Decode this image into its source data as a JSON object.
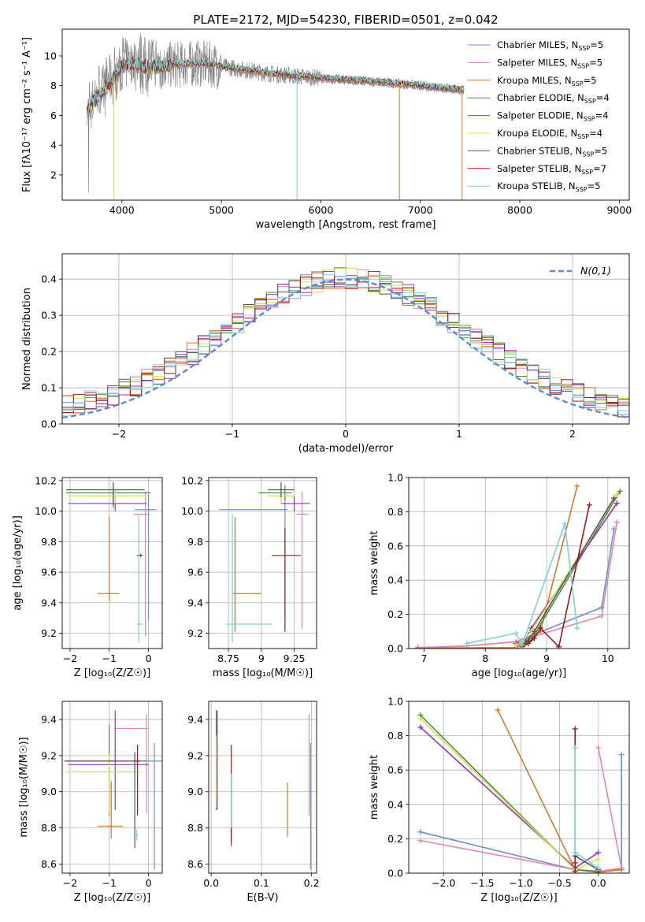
{
  "figure_title": "PLATE=2172, MJD=54230, FIBERID=0501, z=0.042",
  "colors": {
    "chabrier_miles": "#6d8fd6",
    "salpeter_miles": "#e385ba",
    "kroupa_miles": "#d6782a",
    "chabrier_elodie": "#4c8c48",
    "salpeter_elodie": "#9a2fb8",
    "kroupa_elodie": "#cfe64a",
    "chabrier_stelib": "#555555",
    "salpeter_stelib": "#a01818",
    "kroupa_stelib": "#7bd3d6",
    "data_spectrum": "#7f7f7f",
    "normal_curve": "#5b8bd6"
  },
  "legend_entries": [
    {
      "label": "Chabrier MILES, N",
      "sub": "SSP",
      "suffix": "=5"
    },
    {
      "label": "Salpeter MILES, N",
      "sub": "SSP",
      "suffix": "=5"
    },
    {
      "label": "Kroupa MILES, N",
      "sub": "SSP",
      "suffix": "=5"
    },
    {
      "label": "Chabrier ELODIE, N",
      "sub": "SSP",
      "suffix": "=4"
    },
    {
      "label": "Salpeter ELODIE, N",
      "sub": "SSP",
      "suffix": "=4"
    },
    {
      "label": "Kroupa ELODIE, N",
      "sub": "SSP",
      "suffix": "=4"
    },
    {
      "label": "Chabrier STELIB, N",
      "sub": "SSP",
      "suffix": "=5"
    },
    {
      "label": "Salpeter STELIB, N",
      "sub": "SSP",
      "suffix": "=7"
    },
    {
      "label": "Kroupa STELIB, N",
      "sub": "SSP",
      "suffix": "=5"
    }
  ],
  "chart_data": [
    {
      "id": "spectrum",
      "type": "line",
      "xlabel": "wavelength [Angstrom, rest frame]",
      "ylabel": "Flux [fλ10⁻¹⁷ erg cm⁻² s⁻¹ A⁻¹]",
      "xlim": [
        3400,
        9100
      ],
      "ylim": [
        0.3,
        11.8
      ],
      "xticks": [
        4000,
        5000,
        6000,
        7000,
        8000,
        9000
      ],
      "yticks": [
        2,
        4,
        6,
        8,
        10
      ],
      "data_envelope": {
        "x": [
          3650,
          3800,
          4000,
          4200,
          4500,
          5000,
          5500,
          6000,
          6500,
          7000,
          7400
        ],
        "y": [
          6.5,
          7.8,
          9.5,
          10.0,
          9.8,
          9.6,
          9.0,
          8.6,
          8.4,
          8.1,
          7.8
        ]
      },
      "model_continuum": {
        "x": [
          3650,
          3700,
          3800,
          3900,
          4000,
          4100,
          4200,
          4300,
          4500,
          4800,
          5000,
          5500,
          6000,
          6500,
          7000,
          7440
        ],
        "y": [
          6.2,
          6.8,
          7.6,
          8.3,
          9.3,
          9.5,
          9.3,
          9.2,
          9.4,
          9.5,
          9.3,
          8.8,
          8.5,
          8.3,
          8.0,
          7.7
        ]
      },
      "dips": [
        {
          "x": 3920,
          "y": 0.3,
          "model": "kroupa_elodie"
        },
        {
          "x": 5760,
          "y": 0.3,
          "model": "kroupa_stelib"
        },
        {
          "x": 6790,
          "y": 0.3,
          "model": "kroupa_miles"
        },
        {
          "x": 7420,
          "y": 0.3,
          "model": "kroupa_miles"
        }
      ]
    },
    {
      "id": "residuals",
      "type": "histogram",
      "xlabel": "(data-model)/error",
      "ylabel": "Normed distribution",
      "xlim": [
        -2.5,
        2.5
      ],
      "ylim": [
        0,
        0.47
      ],
      "xticks": [
        -2,
        -1,
        0,
        1,
        2
      ],
      "yticks": [
        0.0,
        0.1,
        0.2,
        0.3,
        0.4
      ],
      "grid": true,
      "legend": "N(0,1)",
      "legend_position": "top-right",
      "bin_width": 0.1
    },
    {
      "id": "age_vs_Z",
      "type": "scatter-errorbar",
      "xlabel": "Z [log₁₀(Z/Z☉)]",
      "ylabel": "age  [log₁₀(age/yr)]",
      "xlim": [
        -2.2,
        0.35
      ],
      "ylim": [
        9.1,
        10.22
      ],
      "xticks": [
        -2,
        -1,
        0
      ],
      "yticks": [
        9.2,
        9.4,
        9.6,
        9.8,
        10.0,
        10.2
      ],
      "grid": true,
      "points": [
        {
          "model": "chabrier_miles",
          "x": 0.0,
          "y": 10.01,
          "xerr": [
            0.35,
            0.2
          ],
          "yerr": [
            0.72,
            0.1
          ]
        },
        {
          "model": "salpeter_miles",
          "x": -0.08,
          "y": 9.98,
          "xerr": [
            0.3,
            0.1
          ],
          "yerr": [
            0.8,
            0.15
          ]
        },
        {
          "model": "kroupa_miles",
          "x": -1.0,
          "y": 9.46,
          "xerr": [
            0.3,
            0.25
          ],
          "yerr": [
            0.05,
            0.5
          ]
        },
        {
          "model": "chabrier_elodie",
          "x": -0.9,
          "y": 10.12,
          "xerr": [
            1.2,
            0.95
          ],
          "yerr": [
            0.1,
            0.05
          ]
        },
        {
          "model": "salpeter_elodie",
          "x": -0.85,
          "y": 10.05,
          "xerr": [
            1.2,
            0.8
          ],
          "yerr": [
            0.05,
            0.05
          ]
        },
        {
          "model": "kroupa_elodie",
          "x": -0.85,
          "y": 10.1,
          "xerr": [
            1.2,
            0.8
          ],
          "yerr": [
            0.05,
            0.05
          ]
        },
        {
          "model": "chabrier_stelib",
          "x": -0.9,
          "y": 10.14,
          "xerr": [
            1.2,
            0.8
          ],
          "yerr": [
            0.1,
            0.05
          ]
        },
        {
          "model": "salpeter_stelib",
          "x": -0.2,
          "y": 9.71,
          "xerr": [
            0.1,
            0.05
          ],
          "yerr": [
            0.01,
            0.01
          ]
        },
        {
          "model": "kroupa_stelib",
          "x": -0.25,
          "y": 9.26,
          "xerr": [
            0.05,
            0.1
          ],
          "yerr": [
            0.12,
            0.72
          ]
        }
      ]
    },
    {
      "id": "age_vs_mass",
      "type": "scatter-errorbar",
      "xlabel": "mass [log₁₀(M/M☉)]",
      "ylabel": "",
      "xlim": [
        8.6,
        9.42
      ],
      "ylim": [
        9.1,
        10.22
      ],
      "xticks": [
        8.75,
        9.0,
        9.25
      ],
      "yticks": [
        9.2,
        9.4,
        9.6,
        9.8,
        10.0,
        10.2
      ],
      "grid": true,
      "points": [
        {
          "model": "chabrier_miles",
          "x": 9.18,
          "y": 10.01,
          "xerr": [
            0.5,
            0.02
          ],
          "yerr": [
            0.72,
            0.1
          ]
        },
        {
          "model": "salpeter_miles",
          "x": 9.31,
          "y": 9.98,
          "xerr": [
            0.05,
            0.05
          ],
          "yerr": [
            0.75,
            0.15
          ]
        },
        {
          "model": "kroupa_miles",
          "x": 8.8,
          "y": 9.46,
          "xerr": [
            0.02,
            0.2
          ],
          "yerr": [
            0.25,
            0.5
          ]
        },
        {
          "model": "chabrier_elodie",
          "x": 9.18,
          "y": 10.12,
          "xerr": [
            0.2,
            0.05
          ],
          "yerr": [
            0.05,
            0.05
          ]
        },
        {
          "model": "salpeter_elodie",
          "x": 9.25,
          "y": 10.05,
          "xerr": [
            0.1,
            0.12
          ],
          "yerr": [
            0.05,
            0.05
          ]
        },
        {
          "model": "kroupa_elodie",
          "x": 9.15,
          "y": 10.1,
          "xerr": [
            0.1,
            0.1
          ],
          "yerr": [
            0.05,
            0.05
          ]
        },
        {
          "model": "chabrier_stelib",
          "x": 9.15,
          "y": 10.14,
          "xerr": [
            0.1,
            0.1
          ],
          "yerr": [
            0.05,
            0.05
          ]
        },
        {
          "model": "salpeter_stelib",
          "x": 9.18,
          "y": 9.71,
          "xerr": [
            0.1,
            0.12
          ],
          "yerr": [
            0.5,
            0.18
          ]
        },
        {
          "model": "kroupa_stelib",
          "x": 8.78,
          "y": 9.26,
          "xerr": [
            0.05,
            0.3
          ],
          "yerr": [
            0.12,
            0.72
          ]
        }
      ]
    },
    {
      "id": "massweight_vs_age",
      "type": "line",
      "xlabel": "age  [log₁₀(age/yr)]",
      "ylabel": "mass weight",
      "xlim": [
        6.75,
        10.35
      ],
      "ylim": [
        0,
        1.0
      ],
      "xticks": [
        7,
        8,
        9,
        10
      ],
      "yticks": [
        0.0,
        0.2,
        0.4,
        0.6,
        0.8,
        1.0
      ],
      "grid": true,
      "series": [
        {
          "model": "chabrier_miles",
          "x": [
            6.9,
            7.7,
            8.5,
            9.9,
            10.1
          ],
          "y": [
            0.005,
            0.015,
            0.04,
            0.24,
            0.7
          ]
        },
        {
          "model": "salpeter_miles",
          "x": [
            6.9,
            7.7,
            8.5,
            9.9,
            10.15
          ],
          "y": [
            0.005,
            0.015,
            0.04,
            0.19,
            0.74
          ]
        },
        {
          "model": "kroupa_miles",
          "x": [
            6.9,
            8.5,
            8.9,
            9.5
          ],
          "y": [
            0.003,
            0.005,
            0.1,
            0.95
          ]
        },
        {
          "model": "chabrier_elodie",
          "x": [
            8.5,
            8.65,
            8.75,
            10.2
          ],
          "y": [
            0.02,
            0.03,
            0.05,
            0.92
          ]
        },
        {
          "model": "salpeter_elodie",
          "x": [
            8.5,
            8.65,
            8.75,
            10.15
          ],
          "y": [
            0.03,
            0.05,
            0.12,
            0.85
          ]
        },
        {
          "model": "kroupa_elodie",
          "x": [
            8.5,
            8.6,
            8.75,
            10.15
          ],
          "y": [
            0.02,
            0.04,
            0.1,
            0.9
          ]
        },
        {
          "model": "chabrier_stelib",
          "x": [
            8.6,
            8.7,
            8.8,
            10.1
          ],
          "y": [
            0.02,
            0.05,
            0.1,
            0.88
          ]
        },
        {
          "model": "salpeter_stelib",
          "x": [
            8.6,
            8.7,
            8.8,
            8.9,
            9.2,
            9.7
          ],
          "y": [
            0.01,
            0.03,
            0.06,
            0.12,
            0.01,
            0.84
          ]
        },
        {
          "model": "kroupa_stelib",
          "x": [
            7.7,
            8.5,
            8.6,
            9.3,
            9.5
          ],
          "y": [
            0.03,
            0.09,
            0.02,
            0.73,
            0.12
          ]
        }
      ]
    },
    {
      "id": "mass_vs_Z",
      "type": "scatter-errorbar",
      "xlabel": "Z [log₁₀(Z/Z☉)]",
      "ylabel": "mass [log₁₀(M/M☉)]",
      "xlim": [
        -2.2,
        0.35
      ],
      "ylim": [
        8.55,
        9.5
      ],
      "xticks": [
        -2,
        -1,
        0
      ],
      "yticks": [
        8.6,
        8.8,
        9.0,
        9.2,
        9.4
      ],
      "grid": true,
      "points": [
        {
          "model": "chabrier_miles",
          "x": 0.15,
          "y": 9.17,
          "xerr": [
            0.3,
            0.2
          ],
          "yerr": [
            0.6,
            0.1
          ]
        },
        {
          "model": "salpeter_miles",
          "x": -0.05,
          "y": 9.35,
          "xerr": [
            0.8,
            0.05
          ],
          "yerr": [
            0.47,
            0.08
          ]
        },
        {
          "model": "kroupa_miles",
          "x": -0.95,
          "y": 8.81,
          "xerr": [
            0.35,
            0.3
          ],
          "yerr": [
            0.07,
            0.25
          ]
        },
        {
          "model": "chabrier_elodie",
          "x": -1.0,
          "y": 9.17,
          "xerr": [
            1.1,
            0.95
          ],
          "yerr": [
            0.3,
            0.2
          ]
        },
        {
          "model": "salpeter_elodie",
          "x": -0.85,
          "y": 9.15,
          "xerr": [
            1.2,
            0.85
          ],
          "yerr": [
            0.25,
            0.3
          ]
        },
        {
          "model": "kroupa_elodie",
          "x": -1.0,
          "y": 9.11,
          "xerr": [
            1.1,
            0.8
          ],
          "yerr": [
            0.23,
            0.1
          ]
        },
        {
          "model": "chabrier_stelib",
          "x": -0.35,
          "y": 9.17,
          "xerr": [
            1.8,
            0.15
          ],
          "yerr": [
            0.48,
            0.05
          ]
        },
        {
          "model": "salpeter_stelib",
          "x": -0.28,
          "y": 9.17,
          "xerr": [
            0.1,
            0.05
          ],
          "yerr": [
            0.3,
            0.09
          ]
        },
        {
          "model": "kroupa_stelib",
          "x": -0.3,
          "y": 8.76,
          "xerr": [
            0.05,
            0.05
          ],
          "yerr": [
            0.03,
            0.03
          ]
        }
      ]
    },
    {
      "id": "mass_vs_ebv",
      "type": "scatter-errorbar",
      "xlabel": "E(B-V)",
      "ylabel": "",
      "xlim": [
        -0.005,
        0.21
      ],
      "ylim": [
        8.55,
        9.5
      ],
      "xticks": [
        0.0,
        0.1,
        0.2
      ],
      "yticks": [
        8.6,
        8.8,
        9.0,
        9.2,
        9.4
      ],
      "grid": true,
      "points": [
        {
          "model": "chabrier_miles",
          "x": 0.198,
          "y": 9.17,
          "xerr": [
            0,
            0
          ],
          "yerr": [
            0.6,
            0.1
          ]
        },
        {
          "model": "salpeter_miles",
          "x": 0.195,
          "y": 9.17,
          "xerr": [
            0,
            0
          ],
          "yerr": [
            0.3,
            0.26
          ]
        },
        {
          "model": "kroupa_miles",
          "x": 0.152,
          "y": 8.9,
          "xerr": [
            0,
            0
          ],
          "yerr": [
            0.15,
            0.15
          ]
        },
        {
          "model": "chabrier_elodie",
          "x": 0.01,
          "y": 9.2,
          "xerr": [
            0,
            0
          ],
          "yerr": [
            0.3,
            0.25
          ]
        },
        {
          "model": "salpeter_elodie",
          "x": 0.012,
          "y": 9.2,
          "xerr": [
            0,
            0
          ],
          "yerr": [
            0.3,
            0.25
          ]
        },
        {
          "model": "kroupa_elodie",
          "x": 0.01,
          "y": 9.11,
          "xerr": [
            0,
            0
          ],
          "yerr": [
            0.2,
            0.2
          ]
        },
        {
          "model": "chabrier_stelib",
          "x": 0.04,
          "y": 8.9,
          "xerr": [
            0,
            0
          ],
          "yerr": [
            0.2,
            0.2
          ]
        },
        {
          "model": "salpeter_stelib",
          "x": 0.04,
          "y": 9.07,
          "xerr": [
            0,
            0
          ],
          "yerr": [
            0.35,
            0.19
          ]
        },
        {
          "model": "kroupa_stelib",
          "x": 0.04,
          "y": 8.9,
          "xerr": [
            0,
            0
          ],
          "yerr": [
            0.1,
            0.2
          ]
        }
      ]
    },
    {
      "id": "massweight_vs_Z",
      "type": "line",
      "xlabel": "Z [log₁₀(Z/Z☉)]",
      "ylabel": "mass weight",
      "xlim": [
        -2.45,
        0.4
      ],
      "ylim": [
        0,
        1.0
      ],
      "xticks": [
        -2.0,
        -1.5,
        -1.0,
        -0.5,
        0.0
      ],
      "yticks": [
        0.0,
        0.2,
        0.4,
        0.6,
        0.8,
        1.0
      ],
      "grid": true,
      "series": [
        {
          "model": "chabrier_miles",
          "x": [
            -2.3,
            -0.3,
            0.0,
            0.3,
            0.3
          ],
          "y": [
            0.24,
            0.02,
            0.01,
            0.02,
            0.69
          ]
        },
        {
          "model": "salpeter_miles",
          "x": [
            -2.3,
            -0.3,
            0.0,
            0.3,
            0.0
          ],
          "y": [
            0.19,
            0.02,
            0.01,
            0.03,
            0.73
          ]
        },
        {
          "model": "kroupa_miles",
          "x": [
            -1.3,
            -0.3,
            0.0,
            0.3
          ],
          "y": [
            0.95,
            0.02,
            0.005,
            0.02
          ]
        },
        {
          "model": "chabrier_elodie",
          "x": [
            -2.3,
            -0.3,
            0.0
          ],
          "y": [
            0.92,
            0.02,
            0.01
          ]
        },
        {
          "model": "salpeter_elodie",
          "x": [
            -2.3,
            -0.3,
            0.0
          ],
          "y": [
            0.85,
            0.03,
            0.12
          ]
        },
        {
          "model": "kroupa_elodie",
          "x": [
            -2.3,
            -0.3,
            0.0
          ],
          "y": [
            0.9,
            0.02,
            0.08
          ]
        },
        {
          "model": "chabrier_stelib",
          "x": [
            -0.3,
            0.0
          ],
          "y": [
            0.1,
            0.02
          ]
        },
        {
          "model": "salpeter_stelib",
          "x": [
            -0.3,
            -0.3,
            -0.3
          ],
          "y": [
            0.84,
            0.06,
            0.01
          ]
        },
        {
          "model": "kroupa_stelib",
          "x": [
            -0.3,
            -0.3,
            0.0
          ],
          "y": [
            0.73,
            0.12,
            0.03
          ]
        }
      ]
    }
  ]
}
